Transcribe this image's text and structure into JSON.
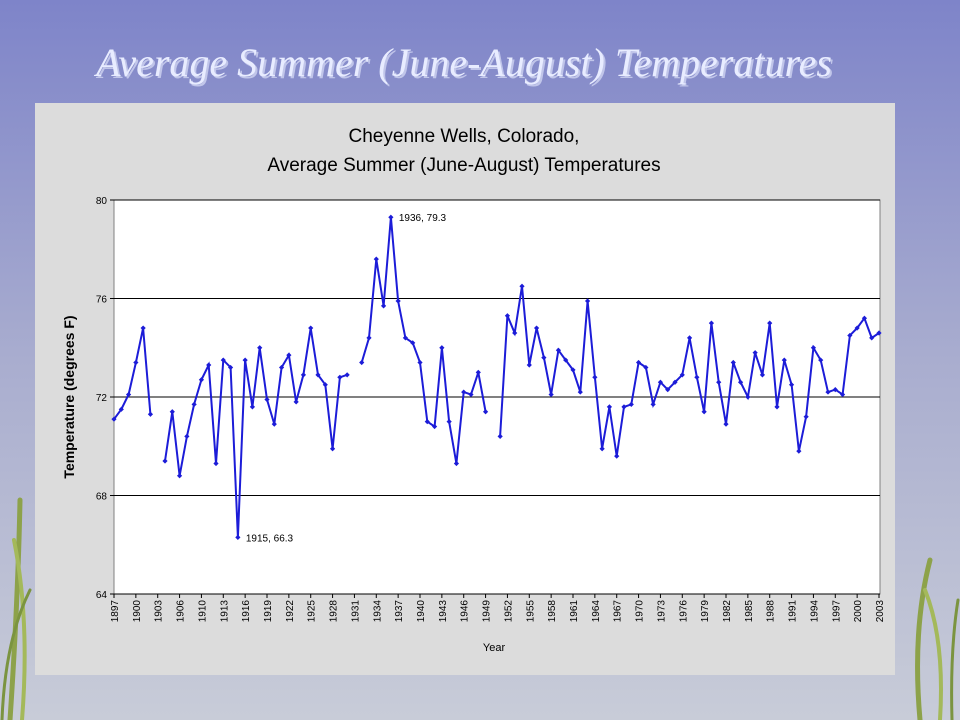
{
  "slide_title": "Average Summer (June-August) Temperatures",
  "chart_data": {
    "type": "line",
    "title": [
      "Cheyenne Wells, Colorado,",
      "Average Summer (June-August) Temperatures"
    ],
    "x_label": "Year",
    "y_label": "Temperature (degrees F)",
    "ylim": [
      64,
      80
    ],
    "yticks": [
      64,
      68,
      72,
      76,
      80
    ],
    "grid": true,
    "categories": [
      "1897",
      null,
      null,
      "1900",
      null,
      null,
      "1903",
      null,
      null,
      "1906",
      null,
      null,
      "1910",
      null,
      null,
      "1913",
      null,
      null,
      "1916",
      null,
      null,
      "1919",
      null,
      null,
      "1922",
      null,
      null,
      "1925",
      null,
      null,
      "1928",
      null,
      null,
      "1931",
      null,
      null,
      "1934",
      null,
      null,
      "1937",
      null,
      null,
      "1940",
      null,
      null,
      "1943",
      null,
      null,
      "1946",
      null,
      null,
      "1949",
      null,
      null,
      "1952",
      null,
      null,
      "1955",
      null,
      null,
      "1958",
      null,
      null,
      "1961",
      null,
      null,
      "1964",
      null,
      null,
      "1967",
      null,
      null,
      "1970",
      null,
      null,
      "1973",
      null,
      null,
      "1976",
      null,
      null,
      "1979",
      null,
      null,
      "1982",
      null,
      null,
      "1985",
      null,
      null,
      "1988",
      null,
      null,
      "1991",
      null,
      null,
      "1994",
      null,
      null,
      "1997",
      null,
      null,
      "2000",
      null,
      null,
      "2003"
    ],
    "series": [
      {
        "color": "#1c1cd8",
        "values": [
          71.1,
          71.5,
          72.1,
          73.4,
          74.8,
          71.3,
          null,
          69.4,
          71.4,
          68.8,
          70.4,
          71.7,
          72.7,
          73.3,
          69.3,
          73.5,
          73.2,
          66.3,
          73.5,
          71.6,
          74.0,
          71.9,
          70.9,
          73.2,
          73.7,
          71.8,
          72.9,
          74.8,
          72.9,
          72.5,
          69.9,
          72.8,
          72.9,
          null,
          73.4,
          74.4,
          77.6,
          75.7,
          79.3,
          75.9,
          74.4,
          74.2,
          73.4,
          71.0,
          70.8,
          74.0,
          71.0,
          69.3,
          72.2,
          72.1,
          73.0,
          71.4,
          null,
          70.4,
          75.3,
          74.6,
          76.5,
          73.3,
          74.8,
          73.6,
          72.1,
          73.9,
          73.5,
          73.1,
          72.2,
          75.9,
          72.8,
          69.9,
          71.6,
          69.6,
          71.6,
          71.7,
          73.4,
          73.2,
          71.7,
          72.6,
          72.3,
          72.6,
          72.9,
          74.4,
          72.8,
          71.4,
          75.0,
          72.6,
          70.9,
          73.4,
          72.6,
          72.0,
          73.8,
          72.9,
          75.0,
          71.6,
          73.5,
          72.5,
          69.8,
          71.2,
          74.0,
          73.5,
          72.2,
          72.3,
          72.1,
          74.5,
          74.8,
          75.2,
          74.4,
          74.6
        ]
      }
    ],
    "annotations": [
      {
        "text": "1936, 79.3"
      },
      {
        "text": "1915, 66.3"
      }
    ]
  }
}
